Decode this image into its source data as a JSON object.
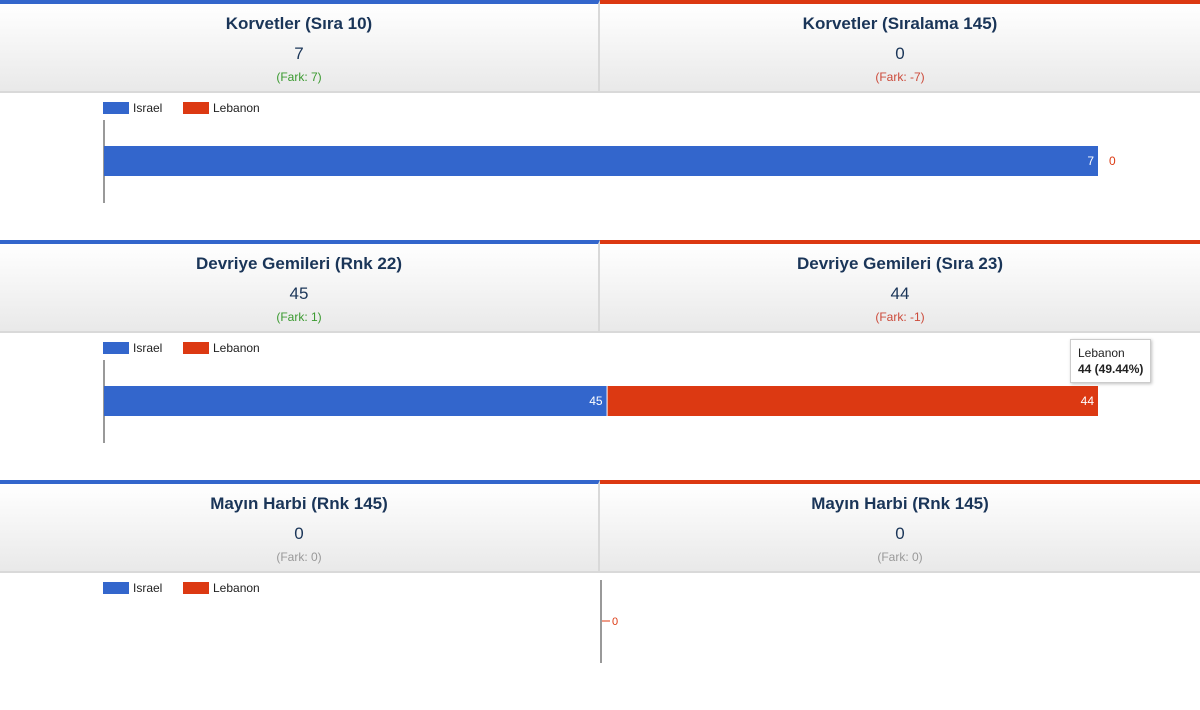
{
  "theme": {
    "left_color": "#3366cc",
    "right_color": "#dc3912",
    "pos_color": "#3a9a2f",
    "neg_color": "#cc4a3a",
    "zero_color": "#999999",
    "title_color": "#1a3558"
  },
  "sections": [
    {
      "left": {
        "title": "Korvetler (Sıra 10)",
        "value": "7",
        "diff": "(Fark: 7)",
        "diff_sign": "positive"
      },
      "right": {
        "title": "Korvetler (Sıralama 145)",
        "value": "0",
        "diff": "(Fark: -7)",
        "diff_sign": "negative"
      }
    },
    {
      "left": {
        "title": "Devriye Gemileri (Rnk 22)",
        "value": "45",
        "diff": "(Fark: 1)",
        "diff_sign": "positive"
      },
      "right": {
        "title": "Devriye Gemileri (Sıra 23)",
        "value": "44",
        "diff": "(Fark: -1)",
        "diff_sign": "negative"
      },
      "tooltip": {
        "label": "Lebanon",
        "value": "44 (49.44%)"
      }
    },
    {
      "left": {
        "title": "Mayın Harbi (Rnk 145)",
        "value": "0",
        "diff": "(Fark: 0)",
        "diff_sign": "zero"
      },
      "right": {
        "title": "Mayın Harbi (Rnk 145)",
        "value": "0",
        "diff": "(Fark: 0)",
        "diff_sign": "zero"
      }
    }
  ],
  "chart_data": [
    {
      "type": "bar",
      "stacking": "percent",
      "orientation": "horizontal",
      "legend_position": "top-left",
      "series": [
        {
          "name": "Israel",
          "values": [
            7
          ],
          "color": "#3366cc"
        },
        {
          "name": "Lebanon",
          "values": [
            0
          ],
          "color": "#dc3912"
        }
      ]
    },
    {
      "type": "bar",
      "stacking": "percent",
      "orientation": "horizontal",
      "legend_position": "top-left",
      "series": [
        {
          "name": "Israel",
          "values": [
            45
          ],
          "color": "#3366cc"
        },
        {
          "name": "Lebanon",
          "values": [
            44
          ],
          "color": "#dc3912"
        }
      ]
    },
    {
      "type": "bar",
      "stacking": "percent",
      "orientation": "horizontal",
      "legend_position": "top-left",
      "series": [
        {
          "name": "Israel",
          "values": [
            0
          ],
          "color": "#3366cc"
        },
        {
          "name": "Lebanon",
          "values": [
            0
          ],
          "color": "#dc3912"
        }
      ]
    }
  ]
}
